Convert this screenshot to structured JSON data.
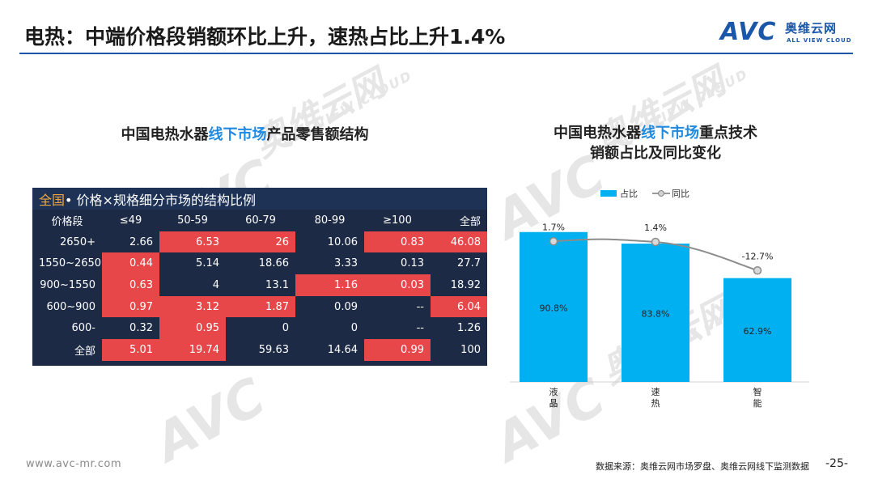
{
  "slide": {
    "title": "电热：中端价格段销额环比上升，速热占比上升1.4%",
    "logo": {
      "brand": "AVC",
      "cn": "奥维云网",
      "en": "ALL VIEW CLOUD"
    },
    "watermark": {
      "brand": "AVC",
      "cn": "奥维云网",
      "en": "ALL VIEW CLOUD"
    },
    "footer_url": "www.avc-mr.com",
    "footer_source": "数据来源：奥维云网市场罗盘、奥维云网线下监测数据",
    "page_number": "-25-"
  },
  "left_panel": {
    "title_pre": "中国电热水器",
    "title_highlight": "线下市场",
    "title_post": "产品零售额结构",
    "table_title_region": "全国",
    "table_title_rest": " • 价格×规格细分市场的结构比例"
  },
  "right_panel": {
    "title_line1_pre": "中国电热水器",
    "title_line1_highlight": "线下市场",
    "title_line1_post": "重点技术",
    "title_line2": "销额占比及同比变化",
    "legend_bar": "占比",
    "legend_line": "同比"
  },
  "colors": {
    "title_rule": "#1b57a8",
    "highlight_text": "#1f8ae0",
    "table_bg": "#1c2a45",
    "table_highlight": "#e8474a",
    "region_text": "#f0a742",
    "bar": "#00b0f0",
    "line": "#8c8c8c"
  },
  "chart_data": [
    {
      "type": "table",
      "title": "全国 • 价格×规格细分市场的结构比例",
      "corner": "价格段",
      "columns": [
        "≤49",
        "50-59",
        "60-79",
        "80-99",
        "≥100",
        "全部"
      ],
      "rows": [
        {
          "label": "2650+",
          "values": [
            "2.66",
            "6.53",
            "26",
            "10.06",
            "0.83",
            "46.08"
          ],
          "highlight": [
            false,
            true,
            true,
            false,
            true,
            true
          ]
        },
        {
          "label": "1550~2650",
          "values": [
            "0.44",
            "5.14",
            "18.66",
            "3.33",
            "0.13",
            "27.7"
          ],
          "highlight": [
            true,
            false,
            false,
            false,
            false,
            false
          ]
        },
        {
          "label": "900~1550",
          "values": [
            "0.63",
            "4",
            "13.1",
            "1.16",
            "0.03",
            "18.92"
          ],
          "highlight": [
            true,
            false,
            false,
            true,
            true,
            false
          ]
        },
        {
          "label": "600~900",
          "values": [
            "0.97",
            "3.12",
            "1.87",
            "0.09",
            "--",
            "6.04"
          ],
          "highlight": [
            true,
            true,
            true,
            false,
            false,
            true
          ]
        },
        {
          "label": "600-",
          "values": [
            "0.32",
            "0.95",
            "0",
            "0",
            "--",
            "1.26"
          ],
          "highlight": [
            false,
            true,
            false,
            false,
            false,
            false
          ]
        },
        {
          "label": "全部",
          "values": [
            "5.01",
            "19.74",
            "59.63",
            "14.64",
            "0.99",
            "100"
          ],
          "highlight": [
            true,
            true,
            false,
            false,
            true,
            false
          ]
        }
      ]
    },
    {
      "type": "bar",
      "title": "中国电热水器线下市场重点技术销额占比及同比变化",
      "categories": [
        "液晶",
        "速热",
        "智能"
      ],
      "series": [
        {
          "name": "占比",
          "type": "bar",
          "values": [
            90.8,
            83.8,
            62.9
          ],
          "labels": [
            "90.8%",
            "83.8%",
            "62.9%"
          ]
        },
        {
          "name": "同比",
          "type": "line",
          "values": [
            1.7,
            1.4,
            -12.7
          ],
          "labels": [
            "1.7%",
            "1.4%",
            "-12.7%"
          ]
        }
      ],
      "ylim": [
        0,
        100
      ],
      "legend": "top-center",
      "grid": false
    }
  ]
}
